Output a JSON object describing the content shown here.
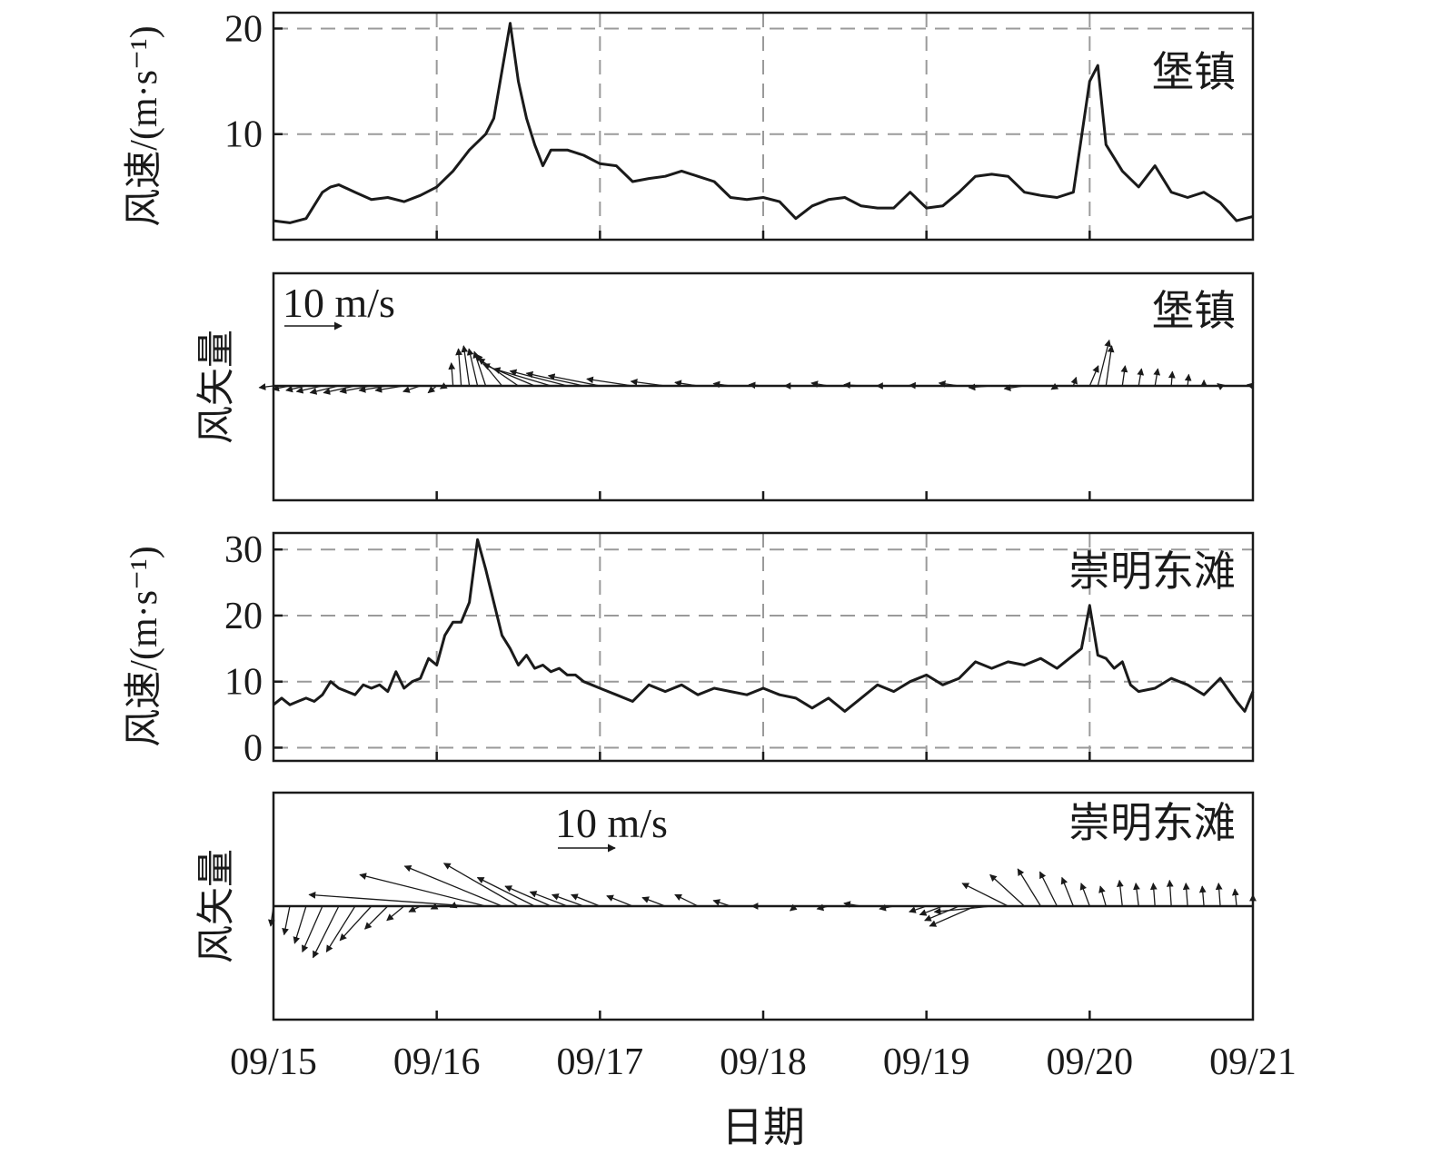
{
  "figure": {
    "x_axis_label": "日期",
    "x_tick_labels": [
      "09/15",
      "09/16",
      "09/17",
      "09/18",
      "09/19",
      "09/20",
      "09/21"
    ],
    "line_color": "#1a1a1a",
    "grid_color": "#9a9a9a",
    "grid_style": "dashed"
  },
  "chart_data": [
    {
      "type": "line",
      "panel": "baozhen-speed",
      "station_label": "堡镇",
      "ylabel": "风速/(m·s⁻¹)",
      "ylim": [
        0,
        21.5
      ],
      "yticks": [
        10,
        20
      ],
      "ytick_labels": [
        "10",
        "20"
      ],
      "grid": true,
      "xlim_days": [
        0,
        6
      ],
      "x_unit": "days since 09/15 00:00",
      "x": [
        0.0,
        0.1,
        0.2,
        0.3,
        0.35,
        0.4,
        0.5,
        0.6,
        0.7,
        0.8,
        0.9,
        1.0,
        1.1,
        1.2,
        1.3,
        1.35,
        1.4,
        1.45,
        1.5,
        1.55,
        1.6,
        1.65,
        1.7,
        1.8,
        1.9,
        2.0,
        2.1,
        2.2,
        2.3,
        2.4,
        2.5,
        2.6,
        2.7,
        2.8,
        2.9,
        3.0,
        3.1,
        3.2,
        3.3,
        3.4,
        3.5,
        3.6,
        3.7,
        3.8,
        3.9,
        4.0,
        4.1,
        4.2,
        4.3,
        4.4,
        4.5,
        4.6,
        4.7,
        4.8,
        4.9,
        5.0,
        5.05,
        5.1,
        5.2,
        5.3,
        5.4,
        5.5,
        5.6,
        5.7,
        5.8,
        5.9,
        6.0
      ],
      "y": [
        1.8,
        1.6,
        2.0,
        4.5,
        5.0,
        5.2,
        4.5,
        3.8,
        4.0,
        3.6,
        4.2,
        5.0,
        6.5,
        8.5,
        10.0,
        11.5,
        16.0,
        20.5,
        15.0,
        11.5,
        9.0,
        7.0,
        8.5,
        8.5,
        8.0,
        7.2,
        7.0,
        5.5,
        5.8,
        6.0,
        6.5,
        6.0,
        5.5,
        4.0,
        3.8,
        4.0,
        3.6,
        2.0,
        3.2,
        3.8,
        4.0,
        3.2,
        3.0,
        3.0,
        4.5,
        3.0,
        3.2,
        4.5,
        6.0,
        6.2,
        6.0,
        4.5,
        4.2,
        4.0,
        4.5,
        15.0,
        16.5,
        9.0,
        6.5,
        5.0,
        7.0,
        4.5,
        4.0,
        4.5,
        3.5,
        1.8,
        2.2
      ]
    },
    {
      "type": "vector",
      "panel": "baozhen-vector",
      "station_label": "堡镇",
      "ylabel": "风矢量",
      "scale_label": "10 m/s",
      "x_unit": "days since 09/15 00:00",
      "x_times": [
        0.0,
        0.1,
        0.2,
        0.3,
        0.4,
        0.5,
        0.6,
        0.7,
        0.8,
        0.9,
        1.0,
        1.05,
        1.1,
        1.15,
        1.2,
        1.25,
        1.3,
        1.4,
        1.5,
        1.6,
        1.7,
        1.8,
        1.9,
        2.0,
        2.2,
        2.4,
        2.6,
        2.8,
        3.0,
        3.2,
        3.4,
        3.6,
        3.8,
        4.0,
        4.2,
        4.4,
        4.6,
        4.8,
        4.9,
        5.0,
        5.05,
        5.1,
        5.2,
        5.3,
        5.4,
        5.5,
        5.6,
        5.7,
        5.8,
        6.0
      ],
      "u": [
        -2.5,
        -3.0,
        -3.5,
        -4.5,
        -5.0,
        -5.5,
        -5.5,
        -5.0,
        -5.0,
        -3.0,
        -1.5,
        -0.8,
        -0.3,
        -0.5,
        -1.0,
        -1.5,
        -2.0,
        -4.5,
        -7.0,
        -9.0,
        -10.0,
        -10.0,
        -10.0,
        -9.0,
        -8.0,
        -6.0,
        -4.0,
        -3.0,
        -2.5,
        -2.0,
        -3.0,
        -3.0,
        -3.0,
        -3.0,
        -3.5,
        -4.0,
        -3.5,
        -1.0,
        0.5,
        1.5,
        2.0,
        1.0,
        0.5,
        0.5,
        0.5,
        0.2,
        0.2,
        0.0,
        -0.5,
        -1.0
      ],
      "v": [
        -0.3,
        -0.6,
        -0.8,
        -1.0,
        -1.2,
        -1.2,
        -1.0,
        -0.8,
        -0.8,
        -1.0,
        -1.2,
        -0.5,
        4.0,
        6.5,
        7.0,
        6.5,
        6.0,
        5.5,
        4.8,
        3.8,
        3.0,
        2.6,
        2.2,
        1.8,
        1.2,
        0.8,
        0.6,
        0.4,
        0.2,
        0.0,
        0.5,
        0.2,
        0.0,
        0.1,
        0.5,
        -0.3,
        -0.5,
        -0.6,
        1.5,
        3.5,
        8.0,
        7.0,
        3.5,
        3.0,
        3.0,
        2.5,
        2.0,
        1.0,
        0.4,
        0.2
      ]
    },
    {
      "type": "line",
      "panel": "chongming-speed",
      "station_label": "崇明东滩",
      "ylabel": "风速/(m·s⁻¹)",
      "ylim": [
        -2,
        32.5
      ],
      "yticks": [
        0,
        10,
        20,
        30
      ],
      "ytick_labels": [
        "0",
        "10",
        "20",
        "30"
      ],
      "grid": true,
      "xlim_days": [
        0,
        6
      ],
      "x_unit": "days since 09/15 00:00",
      "x": [
        0.0,
        0.05,
        0.1,
        0.15,
        0.2,
        0.25,
        0.3,
        0.35,
        0.4,
        0.45,
        0.5,
        0.55,
        0.6,
        0.65,
        0.7,
        0.75,
        0.8,
        0.85,
        0.9,
        0.95,
        1.0,
        1.05,
        1.1,
        1.15,
        1.2,
        1.25,
        1.3,
        1.35,
        1.4,
        1.45,
        1.5,
        1.55,
        1.6,
        1.65,
        1.7,
        1.75,
        1.8,
        1.85,
        1.9,
        1.95,
        2.0,
        2.1,
        2.2,
        2.3,
        2.4,
        2.5,
        2.6,
        2.7,
        2.8,
        2.9,
        3.0,
        3.1,
        3.2,
        3.3,
        3.4,
        3.5,
        3.6,
        3.7,
        3.8,
        3.9,
        4.0,
        4.1,
        4.2,
        4.3,
        4.4,
        4.5,
        4.6,
        4.7,
        4.8,
        4.9,
        4.95,
        5.0,
        5.05,
        5.1,
        5.15,
        5.2,
        5.25,
        5.3,
        5.4,
        5.5,
        5.6,
        5.7,
        5.8,
        5.9,
        5.95,
        6.0
      ],
      "y": [
        6.5,
        7.5,
        6.5,
        7.0,
        7.5,
        7.0,
        8.0,
        10.0,
        9.0,
        8.5,
        8.0,
        9.5,
        9.0,
        9.5,
        8.5,
        11.5,
        9.0,
        10.0,
        10.5,
        13.5,
        12.5,
        17.0,
        19.0,
        19.0,
        22.0,
        31.5,
        27.0,
        22.0,
        17.0,
        15.0,
        12.5,
        14.0,
        12.0,
        12.5,
        11.5,
        12.0,
        11.0,
        11.0,
        10.0,
        9.5,
        9.0,
        8.0,
        7.0,
        9.5,
        8.5,
        9.5,
        8.0,
        9.0,
        8.5,
        8.0,
        9.0,
        8.0,
        7.5,
        6.0,
        7.5,
        5.5,
        7.5,
        9.5,
        8.5,
        10.0,
        11.0,
        9.5,
        10.5,
        13.0,
        12.0,
        13.0,
        12.5,
        13.5,
        12.0,
        14.0,
        15.0,
        21.5,
        14.0,
        13.5,
        12.0,
        13.0,
        9.5,
        8.5,
        9.0,
        10.5,
        9.5,
        8.0,
        10.5,
        7.0,
        5.5,
        8.5
      ]
    },
    {
      "type": "vector",
      "panel": "chongming-vector",
      "station_label": "崇明东滩",
      "ylabel": "风矢量",
      "scale_label": "10 m/s",
      "x_unit": "days since 09/15 00:00",
      "x_times": [
        0.0,
        0.1,
        0.2,
        0.3,
        0.4,
        0.5,
        0.6,
        0.7,
        0.8,
        0.9,
        1.0,
        1.1,
        1.2,
        1.3,
        1.4,
        1.5,
        1.6,
        1.7,
        1.8,
        1.9,
        2.0,
        2.2,
        2.4,
        2.6,
        2.8,
        3.0,
        3.2,
        3.4,
        3.6,
        3.8,
        4.0,
        4.1,
        4.2,
        4.3,
        4.4,
        4.5,
        4.6,
        4.7,
        4.8,
        4.9,
        5.0,
        5.1,
        5.2,
        5.3,
        5.4,
        5.5,
        5.6,
        5.7,
        5.8,
        5.9,
        6.0
      ],
      "u": [
        -0.5,
        -1.0,
        -2.0,
        -3.5,
        -4.5,
        -5.0,
        -5.5,
        -4.0,
        -3.0,
        -2.0,
        -1.0,
        -0.5,
        -28.0,
        -22.0,
        -17.0,
        -13.0,
        -10.0,
        -8.0,
        -6.5,
        -5.5,
        -5.0,
        -4.5,
        -4.0,
        -4.0,
        -3.0,
        -2.0,
        -1.0,
        -2.0,
        -3.0,
        -2.5,
        -3.0,
        -4.0,
        -6.0,
        -8.0,
        -10.0,
        -8.0,
        -6.0,
        -4.0,
        -3.0,
        -2.0,
        -1.5,
        -1.0,
        -0.5,
        -0.5,
        -0.3,
        -0.3,
        -0.3,
        -0.3,
        -0.3,
        -0.3,
        0.0
      ],
      "v": [
        -3.5,
        -5.0,
        -6.5,
        -8.0,
        -9.0,
        -8.0,
        -6.0,
        -4.0,
        -2.5,
        -1.0,
        -0.5,
        -0.2,
        2.0,
        5.5,
        7.0,
        7.5,
        5.0,
        3.5,
        2.5,
        2.0,
        2.0,
        1.8,
        1.5,
        2.0,
        1.0,
        0.0,
        -0.8,
        -0.5,
        0.5,
        -0.5,
        -1.0,
        -1.5,
        -2.5,
        -3.5,
        -1.0,
        4.0,
        5.5,
        6.5,
        6.0,
        5.0,
        4.0,
        3.5,
        4.5,
        4.0,
        4.0,
        4.5,
        4.0,
        3.5,
        4.0,
        3.0,
        2.0
      ]
    }
  ]
}
